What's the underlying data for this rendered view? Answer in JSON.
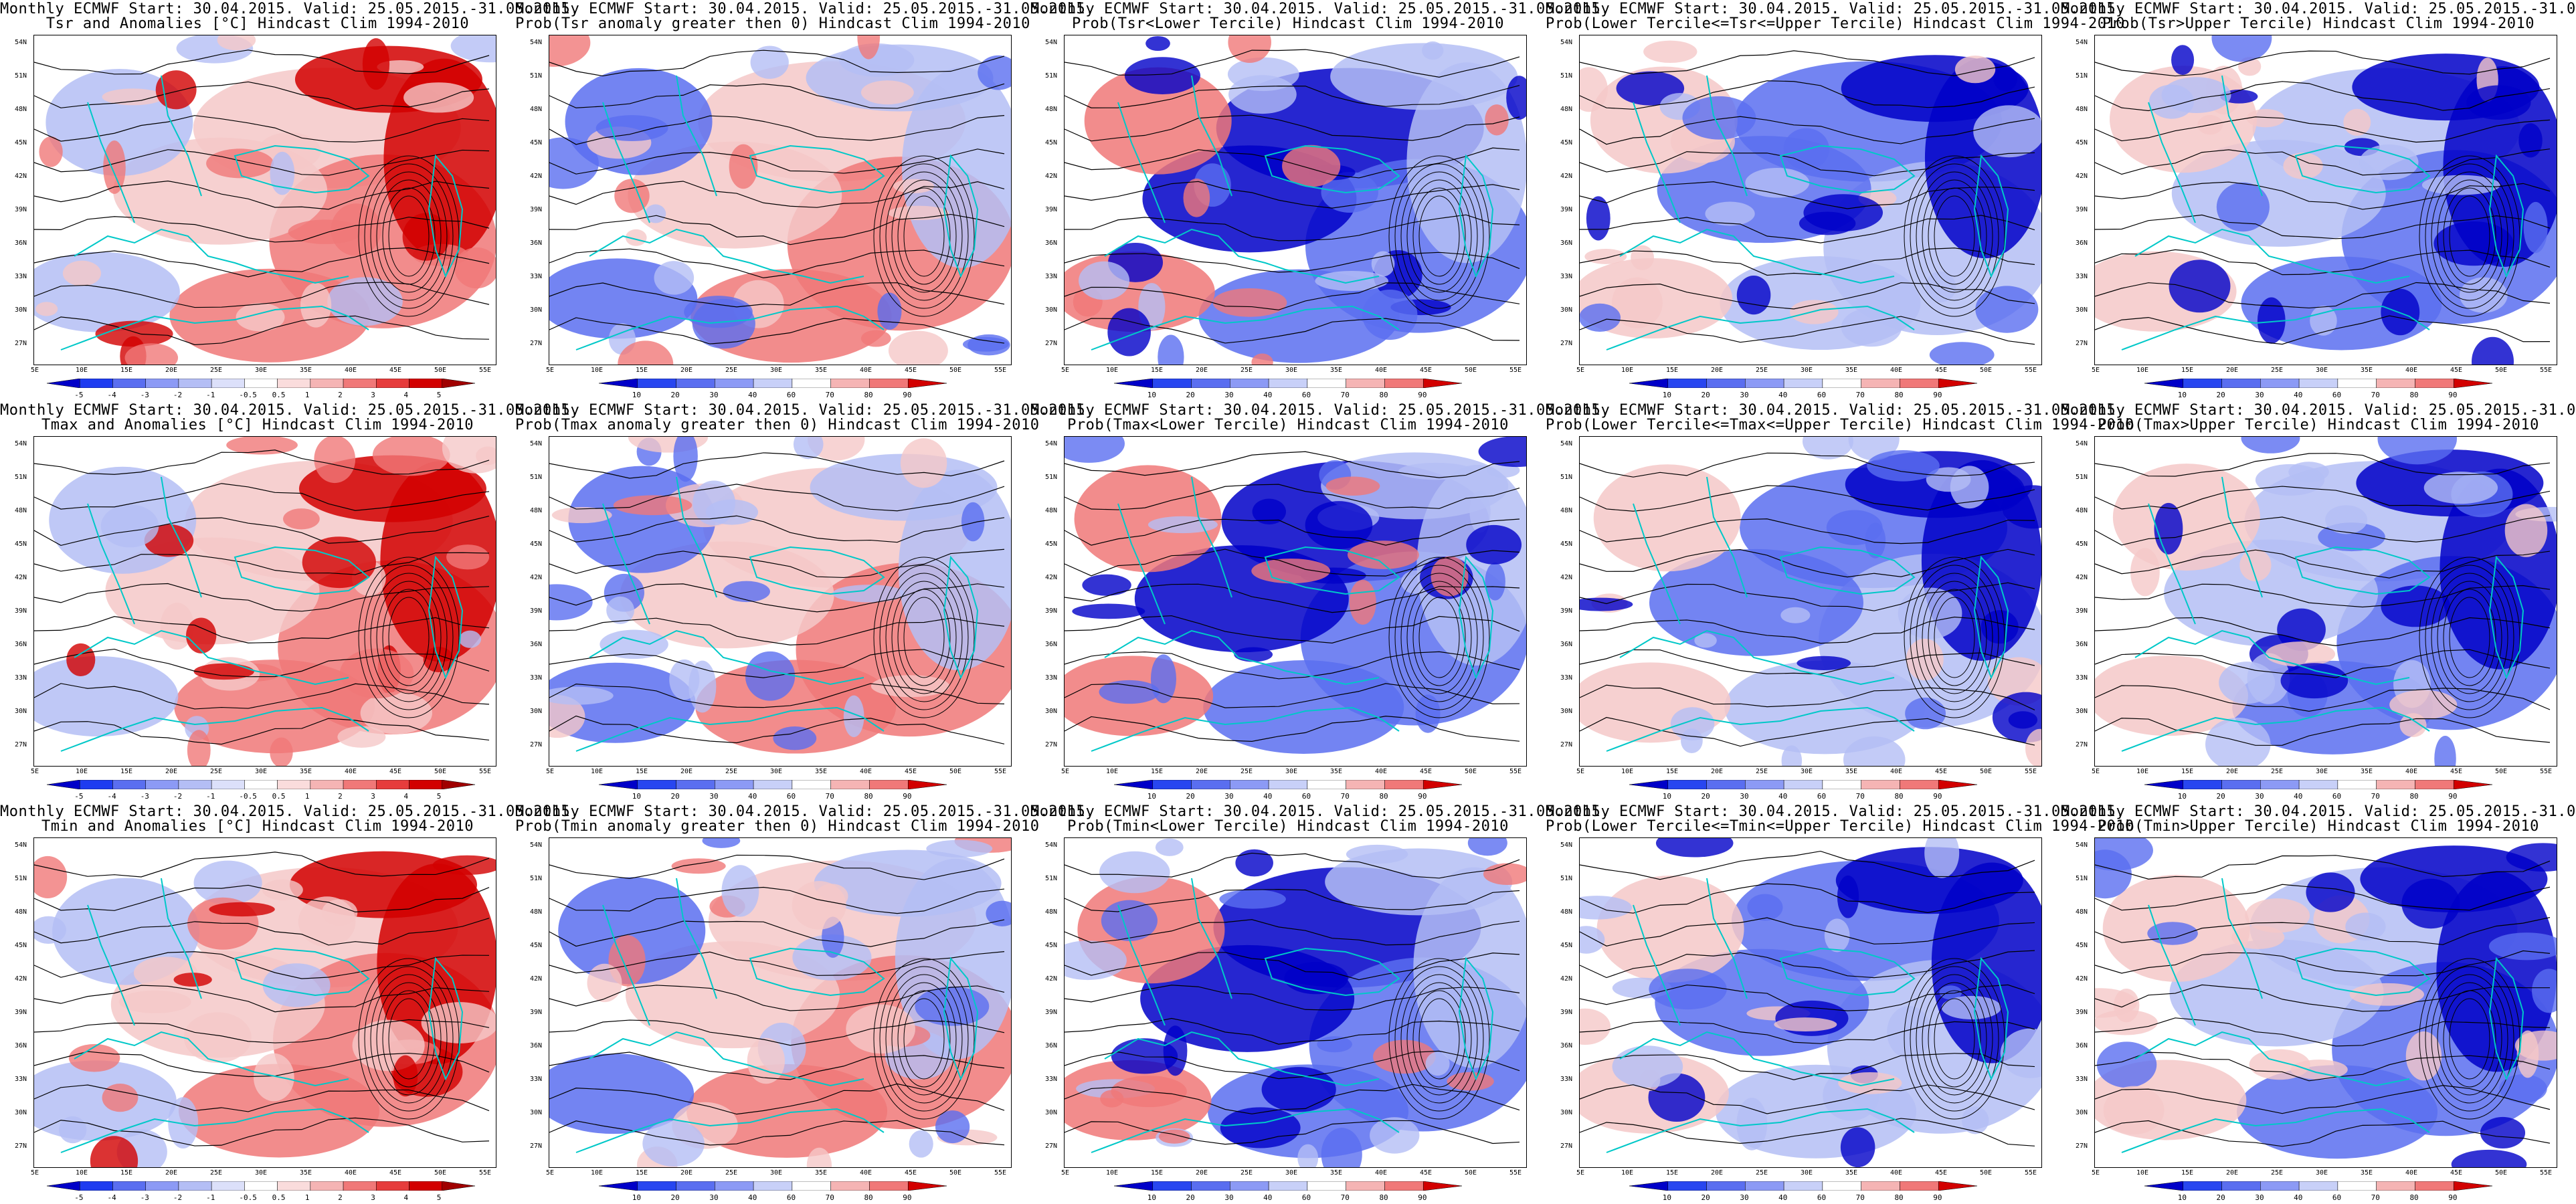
{
  "source_run": "Monthly ECMWF Start: 30.04.2015. Valid: 25.05.2015.-31.05.2015.",
  "lat_labels": [
    "54N",
    "51N",
    "48N",
    "45N",
    "42N",
    "39N",
    "36N",
    "33N",
    "30N",
    "27N"
  ],
  "lon_labels": [
    "5E",
    "10E",
    "15E",
    "20E",
    "25E",
    "30E",
    "35E",
    "40E",
    "45E",
    "50E",
    "55E"
  ],
  "colors": {
    "coast": "#00c8c8",
    "contour": "#000000",
    "blue_dark": "#0000c8",
    "blue_mid": "#5a6ef0",
    "blue_light": "#b4bef5",
    "red_light": "#f5c8c8",
    "red_mid": "#f07878",
    "red_dark": "#d20000"
  },
  "colorbars": {
    "anomaly": [
      "-5",
      "-4",
      "-3",
      "-2",
      "-1",
      "-0.5",
      "0.5",
      "1",
      "2",
      "3",
      "4",
      "5"
    ],
    "probability": [
      "10",
      "20",
      "30",
      "40",
      "60",
      "70",
      "80",
      "90"
    ]
  },
  "panels": [
    {
      "id": "tsr-anom",
      "title": "Tsr and Anomalies [°C] Hindcast Clim 1994-2010",
      "bar": "anomaly"
    },
    {
      "id": "tsr-prob-gt0",
      "title": "Prob(Tsr anomaly greater then 0) Hindcast Clim 1994-2010",
      "bar": "probability"
    },
    {
      "id": "tsr-prob-lower",
      "title": "Prob(Tsr<Lower Tercile) Hindcast Clim 1994-2010",
      "bar": "probability"
    },
    {
      "id": "tsr-prob-middle",
      "title": "Prob(Lower Tercile<=Tsr<=Upper Tercile) Hindcast Clim 1994-2010",
      "bar": "probability"
    },
    {
      "id": "tsr-prob-upper",
      "title": "Prob(Tsr>Upper Tercile) Hindcast Clim 1994-2010",
      "bar": "probability"
    },
    {
      "id": "tmax-anom",
      "title": "Tmax and Anomalies [°C] Hindcast Clim 1994-2010",
      "bar": "anomaly"
    },
    {
      "id": "tmax-prob-gt0",
      "title": "Prob(Tmax anomaly greater then 0) Hindcast Clim 1994-2010",
      "bar": "probability"
    },
    {
      "id": "tmax-prob-lower",
      "title": "Prob(Tmax<Lower Tercile) Hindcast Clim 1994-2010",
      "bar": "probability"
    },
    {
      "id": "tmax-prob-middle",
      "title": "Prob(Lower Tercile<=Tmax<=Upper Tercile) Hindcast Clim 1994-2010",
      "bar": "probability"
    },
    {
      "id": "tmax-prob-upper",
      "title": "Prob(Tmax>Upper Tercile) Hindcast Clim 1994-2010",
      "bar": "probability"
    },
    {
      "id": "tmin-anom",
      "title": "Tmin and Anomalies [°C] Hindcast Clim 1994-2010",
      "bar": "anomaly"
    },
    {
      "id": "tmin-prob-gt0",
      "title": "Prob(Tmin anomaly greater then 0) Hindcast Clim 1994-2010",
      "bar": "probability"
    },
    {
      "id": "tmin-prob-lower",
      "title": "Prob(Tmin<Lower Tercile) Hindcast Clim 1994-2010",
      "bar": "probability"
    },
    {
      "id": "tmin-prob-middle",
      "title": "Prob(Lower Tercile<=Tmin<=Upper Tercile) Hindcast Clim 1994-2010",
      "bar": "probability"
    },
    {
      "id": "tmin-prob-upper",
      "title": "Prob(Tmin>Upper Tercile) Hindcast Clim 1994-2010",
      "bar": "probability"
    }
  ]
}
